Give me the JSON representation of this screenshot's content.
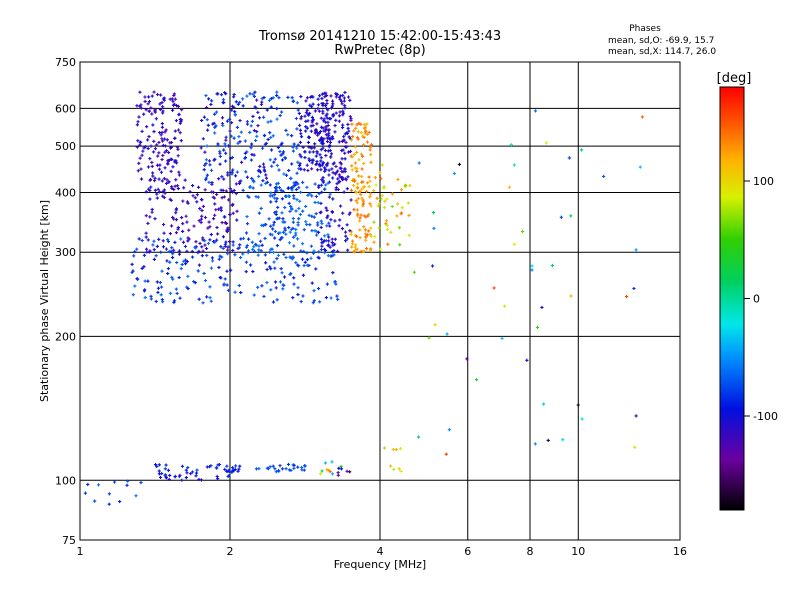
{
  "chart_data": {
    "type": "scatter",
    "title": "Tromsø 20141210 15:42:00-15:43:43",
    "subtitle": "RwPretec (8p)",
    "xlabel": "Frequency [MHz]",
    "ylabel": "Stationary phase Virtual Height [km]",
    "x_scale": "log",
    "y_scale": "log",
    "xlim": [
      1,
      16
    ],
    "ylim": [
      75,
      750
    ],
    "x_ticks": [
      1,
      2,
      4,
      6,
      8,
      10,
      16
    ],
    "y_ticks": [
      75,
      100,
      200,
      300,
      400,
      500,
      600,
      750
    ],
    "grid": true,
    "legend": {
      "title": "Phases",
      "lines": [
        "mean, sd,O: -69.9, 15.7",
        "mean, sd,X: 114.7, 26.0"
      ]
    },
    "colorbar": {
      "label": "[deg]",
      "range": [
        -180,
        180
      ],
      "ticks": [
        100,
        0,
        -100
      ]
    },
    "clusters": [
      {
        "f": [
          1.3,
          1.6
        ],
        "h": [
          420,
          650
        ],
        "phase": [
          -125,
          -100
        ],
        "n": 150
      },
      {
        "f": [
          1.75,
          2.4
        ],
        "h": [
          420,
          650
        ],
        "phase": [
          -120,
          -60
        ],
        "n": 160
      },
      {
        "f": [
          2.4,
          2.75
        ],
        "h": [
          320,
          650
        ],
        "phase": [
          -95,
          -60
        ],
        "n": 110
      },
      {
        "f": [
          2.75,
          3.1
        ],
        "h": [
          440,
          650
        ],
        "phase": [
          -120,
          -90
        ],
        "n": 110
      },
      {
        "f": [
          3.05,
          3.5
        ],
        "h": [
          420,
          650
        ],
        "phase": [
          -125,
          -95
        ],
        "n": 160
      },
      {
        "f": [
          3.5,
          3.85
        ],
        "h": [
          300,
          560
        ],
        "phase": [
          110,
          145
        ],
        "n": 130
      },
      {
        "f": [
          3.85,
          4.6
        ],
        "h": [
          300,
          480
        ],
        "phase": [
          60,
          140
        ],
        "n": 45
      },
      {
        "f": [
          1.35,
          2.1
        ],
        "h": [
          300,
          430
        ],
        "phase": [
          -130,
          -100
        ],
        "n": 170
      },
      {
        "f": [
          2.1,
          3.2
        ],
        "h": [
          290,
          420
        ],
        "phase": [
          -80,
          -55
        ],
        "n": 130
      },
      {
        "f": [
          1.25,
          3.3
        ],
        "h": [
          235,
          320
        ],
        "phase": [
          -100,
          -60
        ],
        "n": 220
      },
      {
        "f": [
          3.0,
          3.5
        ],
        "h": [
          300,
          440
        ],
        "phase": [
          -120,
          -100
        ],
        "n": 60
      },
      {
        "f": [
          1.4,
          2.0
        ],
        "h": [
          100,
          108
        ],
        "phase": [
          -115,
          -70
        ],
        "n": 40
      },
      {
        "f": [
          1.75,
          2.1
        ],
        "h": [
          104,
          108
        ],
        "phase": [
          -105,
          -80
        ],
        "n": 20
      },
      {
        "f": [
          2.25,
          2.85
        ],
        "h": [
          104,
          108
        ],
        "phase": [
          -85,
          -60
        ],
        "n": 25
      },
      {
        "f": [
          1.0,
          1.35
        ],
        "h": [
          88,
          100
        ],
        "phase": [
          -90,
          -60
        ],
        "n": 12
      },
      {
        "f": [
          3.0,
          3.5
        ],
        "h": [
          102,
          110
        ],
        "phase": [
          -180,
          150
        ],
        "n": 15
      },
      {
        "f": [
          4.0,
          4.6
        ],
        "h": [
          102,
          120
        ],
        "phase": [
          60,
          150
        ],
        "n": 8
      },
      {
        "f": [
          4.5,
          13.5
        ],
        "h": [
          110,
          650
        ],
        "phase": [
          -180,
          180
        ],
        "n": 50
      }
    ]
  }
}
